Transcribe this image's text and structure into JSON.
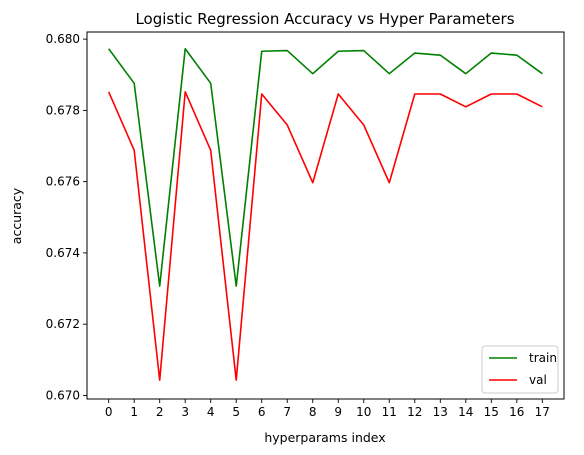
{
  "chart_data": {
    "type": "line",
    "title": "Logistic Regression Accuracy vs Hyper Parameters",
    "xlabel": "hyperparams index",
    "ylabel": "accuracy",
    "x": [
      0,
      1,
      2,
      3,
      4,
      5,
      6,
      7,
      8,
      9,
      10,
      11,
      12,
      13,
      14,
      15,
      16,
      17
    ],
    "xticks": [
      "0",
      "1",
      "2",
      "3",
      "4",
      "5",
      "6",
      "7",
      "8",
      "9",
      "10",
      "11",
      "12",
      "13",
      "14",
      "15",
      "16",
      "17"
    ],
    "yticks": [
      "0.670",
      "0.672",
      "0.674",
      "0.676",
      "0.678",
      "0.680"
    ],
    "ylim": [
      0.6699,
      0.6802
    ],
    "xlim": [
      -0.85,
      17.85
    ],
    "grid": false,
    "legend_position": "lower right",
    "series": [
      {
        "name": "train",
        "color": "#008000",
        "values": [
          0.67973,
          0.67876,
          0.67307,
          0.67973,
          0.67876,
          0.67307,
          0.67966,
          0.67968,
          0.67903,
          0.67966,
          0.67968,
          0.67903,
          0.67961,
          0.67955,
          0.67903,
          0.67961,
          0.67955,
          0.67903
        ]
      },
      {
        "name": "val",
        "color": "#ff0000",
        "values": [
          0.67852,
          0.67688,
          0.67043,
          0.67852,
          0.67688,
          0.67043,
          0.67846,
          0.67759,
          0.67597,
          0.67846,
          0.67759,
          0.67597,
          0.67846,
          0.67846,
          0.6781,
          0.67846,
          0.67846,
          0.6781
        ]
      }
    ]
  }
}
